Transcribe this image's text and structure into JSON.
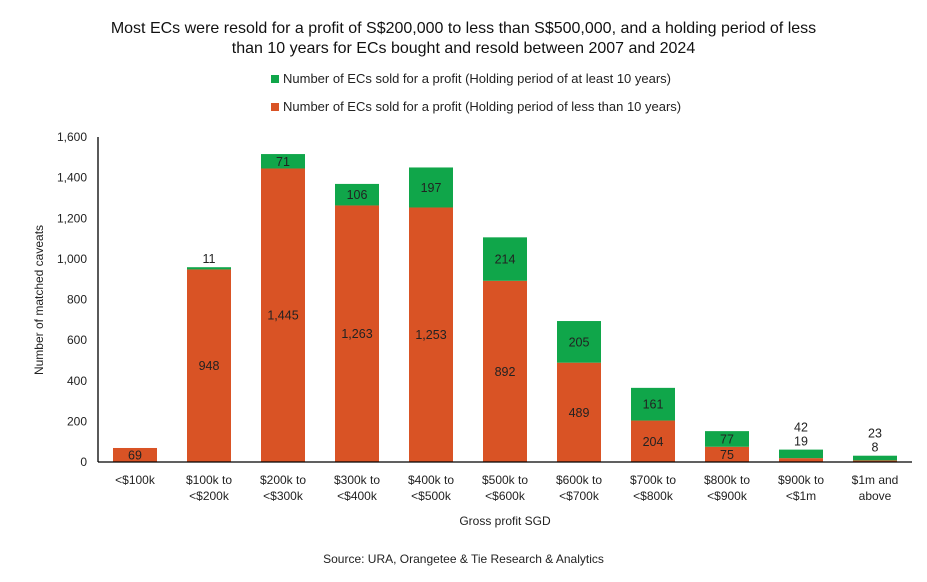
{
  "chart_data": {
    "type": "bar",
    "stacked": true,
    "title": "Most ECs were resold for a profit of S$200,000 to less than S$500,000, and a holding period of less than 10 years for ECs bought and resold between 2007 and 2024",
    "title_line1": "Most ECs were resold for a profit of S$200,000 to less than S$500,000, and a holding period of less",
    "title_line2": "than 10 years for ECs bought and resold between 2007 and 2024",
    "xlabel": "Gross profit SGD",
    "ylabel": "Number of matched caveats",
    "ylim": [
      0,
      1600
    ],
    "yticks": [
      0,
      200,
      400,
      600,
      800,
      1000,
      1200,
      1400,
      1600
    ],
    "ytick_labels": [
      "0",
      "200",
      "400",
      "600",
      "800",
      "1,000",
      "1,200",
      "1,400",
      "1,600"
    ],
    "grid": false,
    "legend_position": "top",
    "categories": [
      [
        "<$100k"
      ],
      [
        "$100k to",
        "<$200k"
      ],
      [
        "$200k to",
        "<$300k"
      ],
      [
        "$300k to",
        "<$400k"
      ],
      [
        "$400k to",
        "<$500k"
      ],
      [
        "$500k to",
        "<$600k"
      ],
      [
        "$600k to",
        "<$700k"
      ],
      [
        "$700k to",
        "<$800k"
      ],
      [
        "$800k to",
        "<$900k"
      ],
      [
        "$900k to",
        "<$1m"
      ],
      [
        "$1m and",
        "above"
      ]
    ],
    "series": [
      {
        "name": "Number of ECs sold for a profit (Holding period of less than 10 years)",
        "color": "#D95325",
        "values": [
          69,
          948,
          1445,
          1263,
          1253,
          892,
          489,
          204,
          75,
          19,
          8
        ]
      },
      {
        "name": "Number of ECs sold for a profit (Holding period of at least 10 years)",
        "color": "#10A64A",
        "values": [
          0,
          11,
          71,
          106,
          197,
          214,
          205,
          161,
          77,
          42,
          23
        ]
      }
    ]
  },
  "source": "Source: URA, Orangetee & Tie Research & Analytics"
}
